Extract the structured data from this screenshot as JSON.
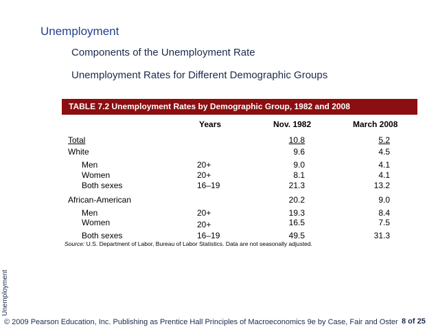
{
  "slide": {
    "title": "Unemployment",
    "subtitle1": "Components of the Unemployment Rate",
    "subtitle2": "Unemployment Rates for Different Demographic Groups"
  },
  "table": {
    "banner": "TABLE 7.2  Unemployment Rates by Demographic Group, 1982 and 2008",
    "headers": {
      "years": "Years",
      "nov1982": "Nov. 1982",
      "march2008": "March 2008"
    },
    "rows": [
      {
        "label": "Total",
        "years": "",
        "nov": "10.8",
        "mar": "5.2"
      },
      {
        "label": "White",
        "years": "",
        "nov": "9.6",
        "mar": "4.5"
      },
      {
        "label": "Men",
        "years": "20+",
        "nov": "9.0",
        "mar": "4.1"
      },
      {
        "label": "Women",
        "years": "20+",
        "nov": "8.1",
        "mar": "4.1"
      },
      {
        "label": "Both sexes",
        "years": "16–19",
        "nov": "21.3",
        "mar": "13.2"
      },
      {
        "label": "African-American",
        "years": "",
        "nov": "20.2",
        "mar": "9.0"
      },
      {
        "label": "Men",
        "years": "20+",
        "nov": "19.3",
        "mar": "8.4"
      },
      {
        "label": "Women",
        "years": "20+",
        "nov": "16.5",
        "mar": "7.5"
      },
      {
        "label": "Both sexes",
        "years": "16–19",
        "nov": "49.5",
        "mar": "31.3"
      }
    ],
    "source_label": "Source:",
    "source_text": "U.S. Department of Labor, Bureau of Labor Statistics.  Data are not seasonally adjusted."
  },
  "sidebar": {
    "vertical_text": "Unemployment"
  },
  "footer": {
    "text": "© 2009 Pearson Education, Inc. Publishing as Prentice Hall   Principles of Macroeconomics 9e by Case, Fair and Oster",
    "page": "8 of 25"
  },
  "colors": {
    "banner": "#8b0e10",
    "title": "#1f3f8f"
  }
}
